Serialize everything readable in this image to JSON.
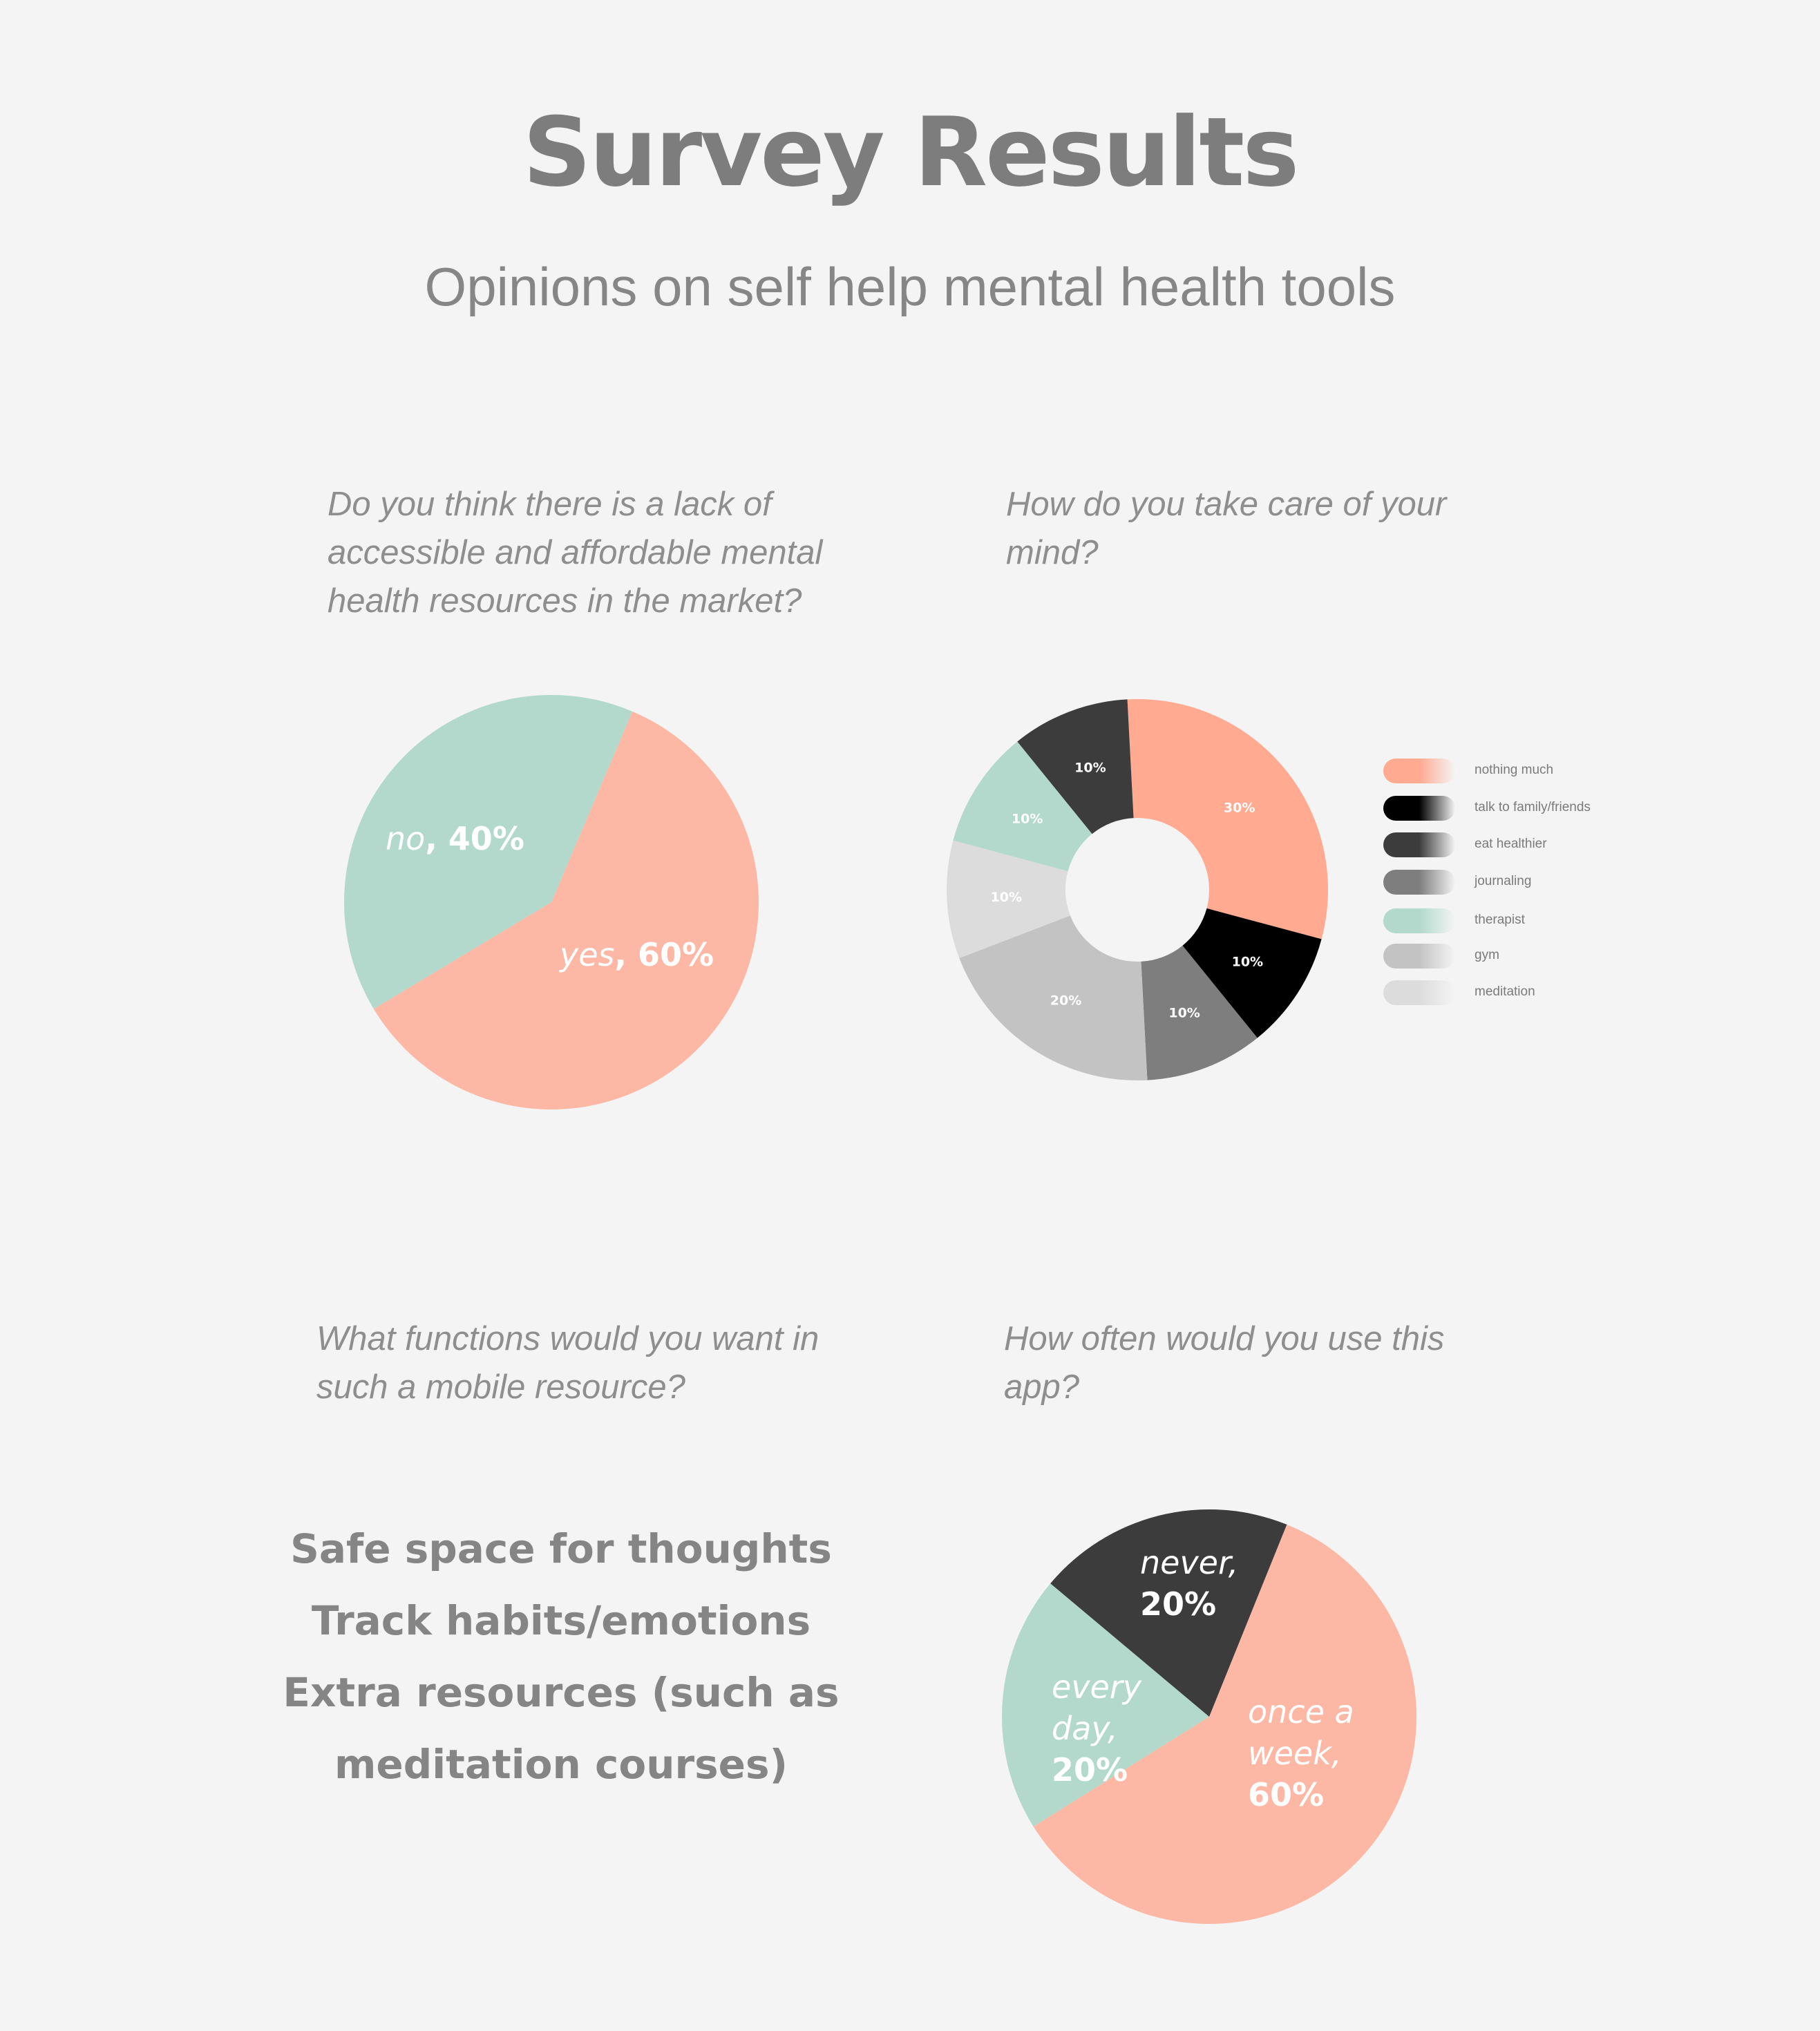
{
  "title": "Survey Results",
  "subtitle": "Opinions on self help mental health tools",
  "questions": {
    "q1": [
      "Do you think there is a lack of",
      "accessible and affordable mental",
      "health resources in the market?"
    ],
    "q2": [
      "How do you take care of your",
      "mind?"
    ],
    "q3": [
      "What functions would you want in",
      "such a mobile resource?"
    ],
    "q4": [
      "How often would you use this",
      "app?"
    ]
  },
  "functions": [
    "Safe space for thoughts",
    "Track habits/emotions",
    "Extra resources (such as",
    "meditation courses)"
  ],
  "chart_data": [
    {
      "type": "pie",
      "categories": [
        "yes",
        "no"
      ],
      "values": [
        60,
        40
      ],
      "labels": [
        {
          "name": "yes",
          "value": "60%"
        },
        {
          "name": "no",
          "value": "40%"
        }
      ],
      "colors": [
        "#fcb8a4",
        "#b2d9cc"
      ]
    },
    {
      "type": "pie",
      "donut": true,
      "categories": [
        "nothing much",
        "talk to family/friends",
        "journaling",
        "gym",
        "meditation",
        "therapist",
        "eat healthier"
      ],
      "values": [
        30,
        10,
        10,
        20,
        10,
        10,
        10
      ],
      "labels": [
        "30%",
        "10%",
        "10%",
        "20%",
        "10%",
        "10%",
        "10%"
      ],
      "colors": [
        "#ffaa91",
        "#000000",
        "#7e7e7e",
        "#c3c3c3",
        "#dcdcdc",
        "#b2d9cc",
        "#3c3c3c"
      ],
      "legend": {
        "placement": "right",
        "items": [
          {
            "label": "nothing much",
            "color": "#ffaa91"
          },
          {
            "label": "talk to family/friends",
            "color": "#000000"
          },
          {
            "label": "eat healthier",
            "color": "#3c3c3c"
          },
          {
            "label": "journaling",
            "color": "#7e7e7e"
          },
          {
            "label": "therapist",
            "color": "#b2d9cc"
          },
          {
            "label": "gym",
            "color": "#c3c3c3"
          },
          {
            "label": "meditation",
            "color": "#dcdcdc"
          }
        ]
      }
    },
    {
      "type": "pie",
      "categories": [
        "once a week",
        "every day",
        "never"
      ],
      "values": [
        60,
        20,
        20
      ],
      "labels": [
        {
          "name": [
            "once a",
            "week,"
          ],
          "value": "60%"
        },
        {
          "name": [
            "every",
            "day,"
          ],
          "value": "20%"
        },
        {
          "name": [
            "never,"
          ],
          "value": "20%"
        }
      ],
      "colors": [
        "#fcb8a4",
        "#b2d9cc",
        "#3c3c3c"
      ]
    }
  ]
}
